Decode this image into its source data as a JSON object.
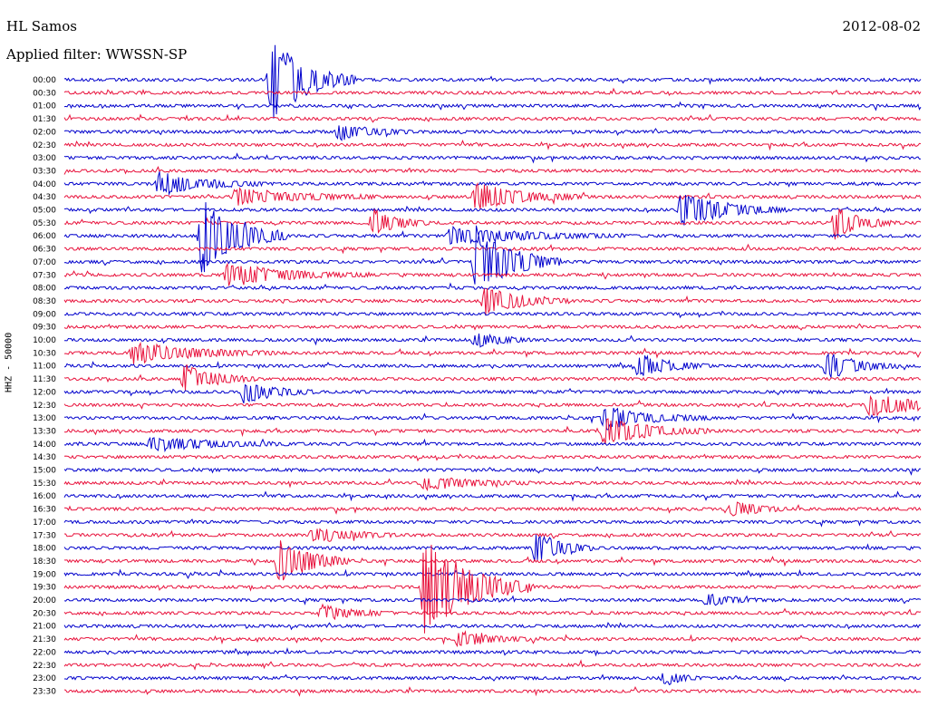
{
  "header": {
    "station": "HL Samos",
    "date": "2012-08-02",
    "filter_label": "Applied filter: WWSSN-SP"
  },
  "chart_data": {
    "type": "line",
    "kind": "helicorder",
    "ylabel": "HHZ - 50000",
    "row_labels": [
      "00:00",
      "00:30",
      "01:00",
      "01:30",
      "02:00",
      "02:30",
      "03:00",
      "03:30",
      "04:00",
      "04:30",
      "05:00",
      "05:30",
      "06:00",
      "06:30",
      "07:00",
      "07:30",
      "08:00",
      "08:30",
      "09:00",
      "09:30",
      "10:00",
      "10:30",
      "11:00",
      "11:30",
      "12:00",
      "12:30",
      "13:00",
      "13:30",
      "14:00",
      "14:30",
      "15:00",
      "15:30",
      "16:00",
      "16:30",
      "17:00",
      "17:30",
      "18:00",
      "18:30",
      "19:00",
      "19:30",
      "20:00",
      "20:30",
      "21:00",
      "21:30",
      "22:00",
      "22:30",
      "23:00",
      "23:30"
    ],
    "colors": [
      "#0000cc",
      "#e8123c"
    ],
    "x_unit": "minute within 30-minute row",
    "xlim": [
      0,
      30
    ],
    "events": [
      {
        "row": 0,
        "minute": 7.2,
        "amplitude": 3.0,
        "duration": 1.2
      },
      {
        "row": 4,
        "minute": 9.6,
        "amplitude": 0.6,
        "duration": 1.0
      },
      {
        "row": 8,
        "minute": 3.3,
        "amplitude": 0.8,
        "duration": 1.5
      },
      {
        "row": 9,
        "minute": 6.0,
        "amplitude": 0.6,
        "duration": 2.0
      },
      {
        "row": 9,
        "minute": 14.4,
        "amplitude": 1.0,
        "duration": 1.5
      },
      {
        "row": 10,
        "minute": 21.6,
        "amplitude": 1.2,
        "duration": 1.5
      },
      {
        "row": 11,
        "minute": 10.8,
        "amplitude": 1.0,
        "duration": 0.8
      },
      {
        "row": 11,
        "minute": 27.0,
        "amplitude": 1.2,
        "duration": 0.8
      },
      {
        "row": 12,
        "minute": 4.8,
        "amplitude": 2.8,
        "duration": 1.2
      },
      {
        "row": 12,
        "minute": 13.5,
        "amplitude": 0.6,
        "duration": 2.5
      },
      {
        "row": 14,
        "minute": 14.4,
        "amplitude": 2.5,
        "duration": 1.2
      },
      {
        "row": 15,
        "minute": 5.7,
        "amplitude": 0.8,
        "duration": 2.0
      },
      {
        "row": 17,
        "minute": 14.7,
        "amplitude": 1.0,
        "duration": 1.2
      },
      {
        "row": 20,
        "minute": 14.4,
        "amplitude": 0.6,
        "duration": 0.8
      },
      {
        "row": 21,
        "minute": 2.4,
        "amplitude": 0.8,
        "duration": 2.0
      },
      {
        "row": 22,
        "minute": 20.1,
        "amplitude": 0.8,
        "duration": 1.0
      },
      {
        "row": 22,
        "minute": 26.7,
        "amplitude": 1.0,
        "duration": 1.0
      },
      {
        "row": 23,
        "minute": 4.2,
        "amplitude": 1.0,
        "duration": 1.0
      },
      {
        "row": 24,
        "minute": 6.3,
        "amplitude": 0.8,
        "duration": 1.0
      },
      {
        "row": 25,
        "minute": 28.2,
        "amplitude": 0.8,
        "duration": 1.5
      },
      {
        "row": 26,
        "minute": 18.9,
        "amplitude": 0.8,
        "duration": 1.5
      },
      {
        "row": 27,
        "minute": 18.9,
        "amplitude": 1.0,
        "duration": 1.5
      },
      {
        "row": 28,
        "minute": 3.0,
        "amplitude": 0.5,
        "duration": 2.0
      },
      {
        "row": 31,
        "minute": 12.6,
        "amplitude": 0.5,
        "duration": 1.5
      },
      {
        "row": 33,
        "minute": 23.4,
        "amplitude": 0.6,
        "duration": 0.8
      },
      {
        "row": 35,
        "minute": 8.7,
        "amplitude": 0.6,
        "duration": 1.2
      },
      {
        "row": 36,
        "minute": 16.5,
        "amplitude": 1.2,
        "duration": 0.8
      },
      {
        "row": 37,
        "minute": 7.5,
        "amplitude": 1.8,
        "duration": 1.0
      },
      {
        "row": 39,
        "minute": 12.6,
        "amplitude": 3.5,
        "duration": 1.5
      },
      {
        "row": 40,
        "minute": 22.5,
        "amplitude": 0.5,
        "duration": 0.8
      },
      {
        "row": 41,
        "minute": 9.0,
        "amplitude": 0.6,
        "duration": 1.0
      },
      {
        "row": 43,
        "minute": 13.8,
        "amplitude": 0.6,
        "duration": 1.0
      },
      {
        "row": 46,
        "minute": 21.0,
        "amplitude": 0.5,
        "duration": 0.6
      }
    ]
  }
}
